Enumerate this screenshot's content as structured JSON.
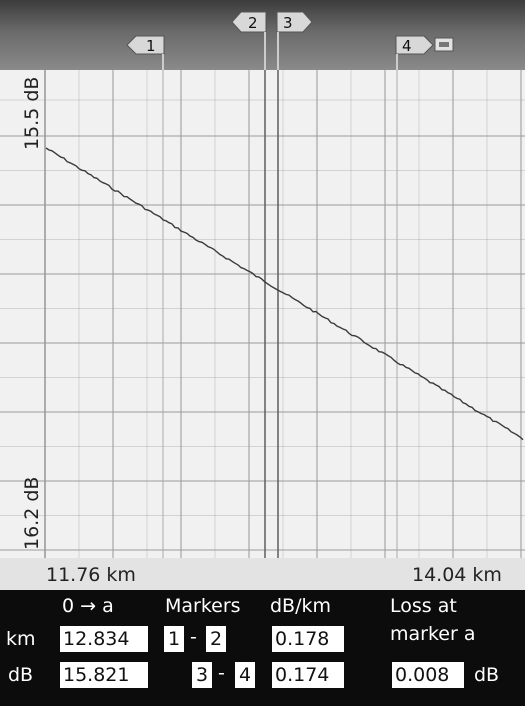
{
  "markers": [
    {
      "id": "marker-1",
      "label": "1"
    },
    {
      "id": "marker-2",
      "label": "2"
    },
    {
      "id": "marker-3",
      "label": "3"
    },
    {
      "id": "marker-4",
      "label": "4"
    }
  ],
  "plot": {
    "y_top_label": "15.5 dB",
    "y_bottom_label": "16.2 dB",
    "x_left_label": "11.76 km",
    "x_right_label": "14.04 km",
    "trace_color": "#3a3a3a",
    "grid_color": "#9a9a9a"
  },
  "readout": {
    "col_origin_header": "0 → a",
    "col_markers_header": "Markers",
    "col_dbkm_header": "dB/km",
    "col_loss_header_line1": "Loss at",
    "col_loss_header_line2": "marker  a",
    "row_km_label": "km",
    "row_db_label": "dB",
    "km_value": "12.834",
    "db_value": "15.821",
    "pair1_a": "1",
    "pair1_sep": "-",
    "pair1_b": "2",
    "pair2_a": "3",
    "pair2_sep": "-",
    "pair2_b": "4",
    "pair1_dbkm": "0.178",
    "pair2_dbkm": "0.174",
    "loss_value": "0.008",
    "loss_unit": "dB"
  }
}
